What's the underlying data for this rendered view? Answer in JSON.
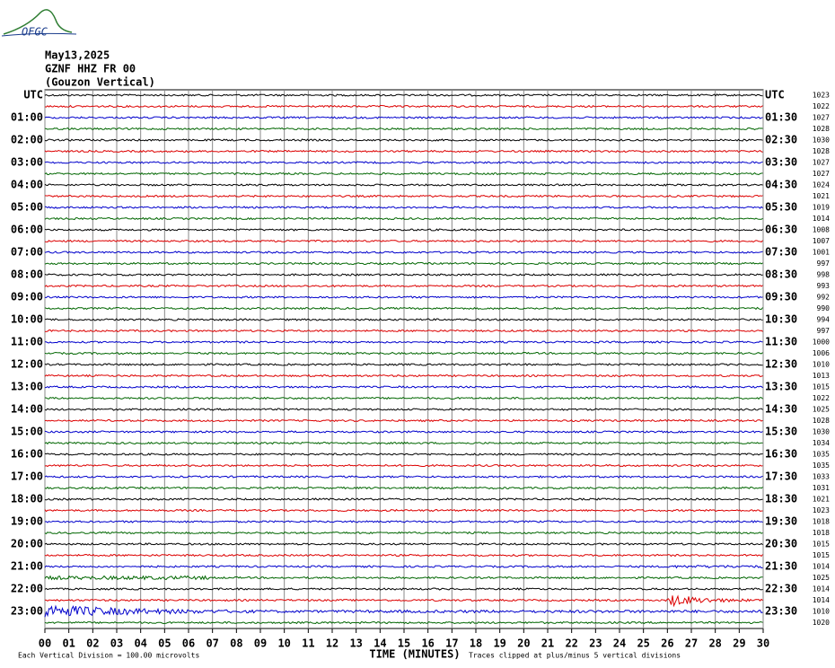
{
  "chart_data": {
    "type": "helicorder",
    "logo": "OFGC",
    "title_lines": [
      "May13,2025",
      "GZNF HHZ FR 00",
      "(Gouzon Vertical)"
    ],
    "left_labels": [
      "UTC",
      "01:00",
      "02:00",
      "03:00",
      "04:00",
      "05:00",
      "06:00",
      "07:00",
      "08:00",
      "09:00",
      "10:00",
      "11:00",
      "12:00",
      "13:00",
      "14:00",
      "15:00",
      "16:00",
      "17:00",
      "18:00",
      "19:00",
      "20:00",
      "21:00",
      "22:00",
      "23:00"
    ],
    "right_labels": [
      "UTC",
      "01:30",
      "02:30",
      "03:30",
      "04:30",
      "05:30",
      "06:30",
      "07:30",
      "08:30",
      "09:30",
      "10:30",
      "11:30",
      "12:30",
      "13:30",
      "14:30",
      "15:30",
      "16:30",
      "17:30",
      "18:30",
      "19:30",
      "20:30",
      "21:30",
      "22:30",
      "23:30"
    ],
    "row_values": [
      1023,
      1022,
      1027,
      1028,
      1030,
      1028,
      1027,
      1027,
      1024,
      1021,
      1019,
      1014,
      1008,
      1007,
      1001,
      997,
      998,
      993,
      992,
      990,
      994,
      997,
      1000,
      1006,
      1010,
      1013,
      1015,
      1022,
      1025,
      1028,
      1030,
      1034,
      1035,
      1035,
      1033,
      1031,
      1021,
      1023,
      1018,
      1018,
      1015,
      1015,
      1014,
      1025,
      1014,
      1014,
      1010,
      1020
    ],
    "colors": [
      "#000000",
      "#dd0000",
      "#0000cc",
      "#006600"
    ],
    "xlim": [
      0,
      30
    ],
    "xticks": [
      {
        "value": 0,
        "label": "00"
      },
      {
        "value": 1,
        "label": "01"
      },
      {
        "value": 2,
        "label": "02"
      },
      {
        "value": 3,
        "label": "03"
      },
      {
        "value": 4,
        "label": "04"
      },
      {
        "value": 5,
        "label": "05"
      },
      {
        "value": 6,
        "label": "06"
      },
      {
        "value": 7,
        "label": "07"
      },
      {
        "value": 8,
        "label": "08"
      },
      {
        "value": 9,
        "label": "09"
      },
      10,
      11,
      12,
      13,
      14,
      15,
      16,
      17,
      18,
      19,
      20,
      21,
      22,
      23,
      24,
      25,
      26,
      27,
      28,
      29,
      30
    ],
    "xlabel": "TIME (MINUTES)",
    "note_left": "Each Vertical Division =  100.00 microvolts",
    "note_right": "Traces clipped at plus/minus 5 vertical divisions",
    "grid": true
  }
}
